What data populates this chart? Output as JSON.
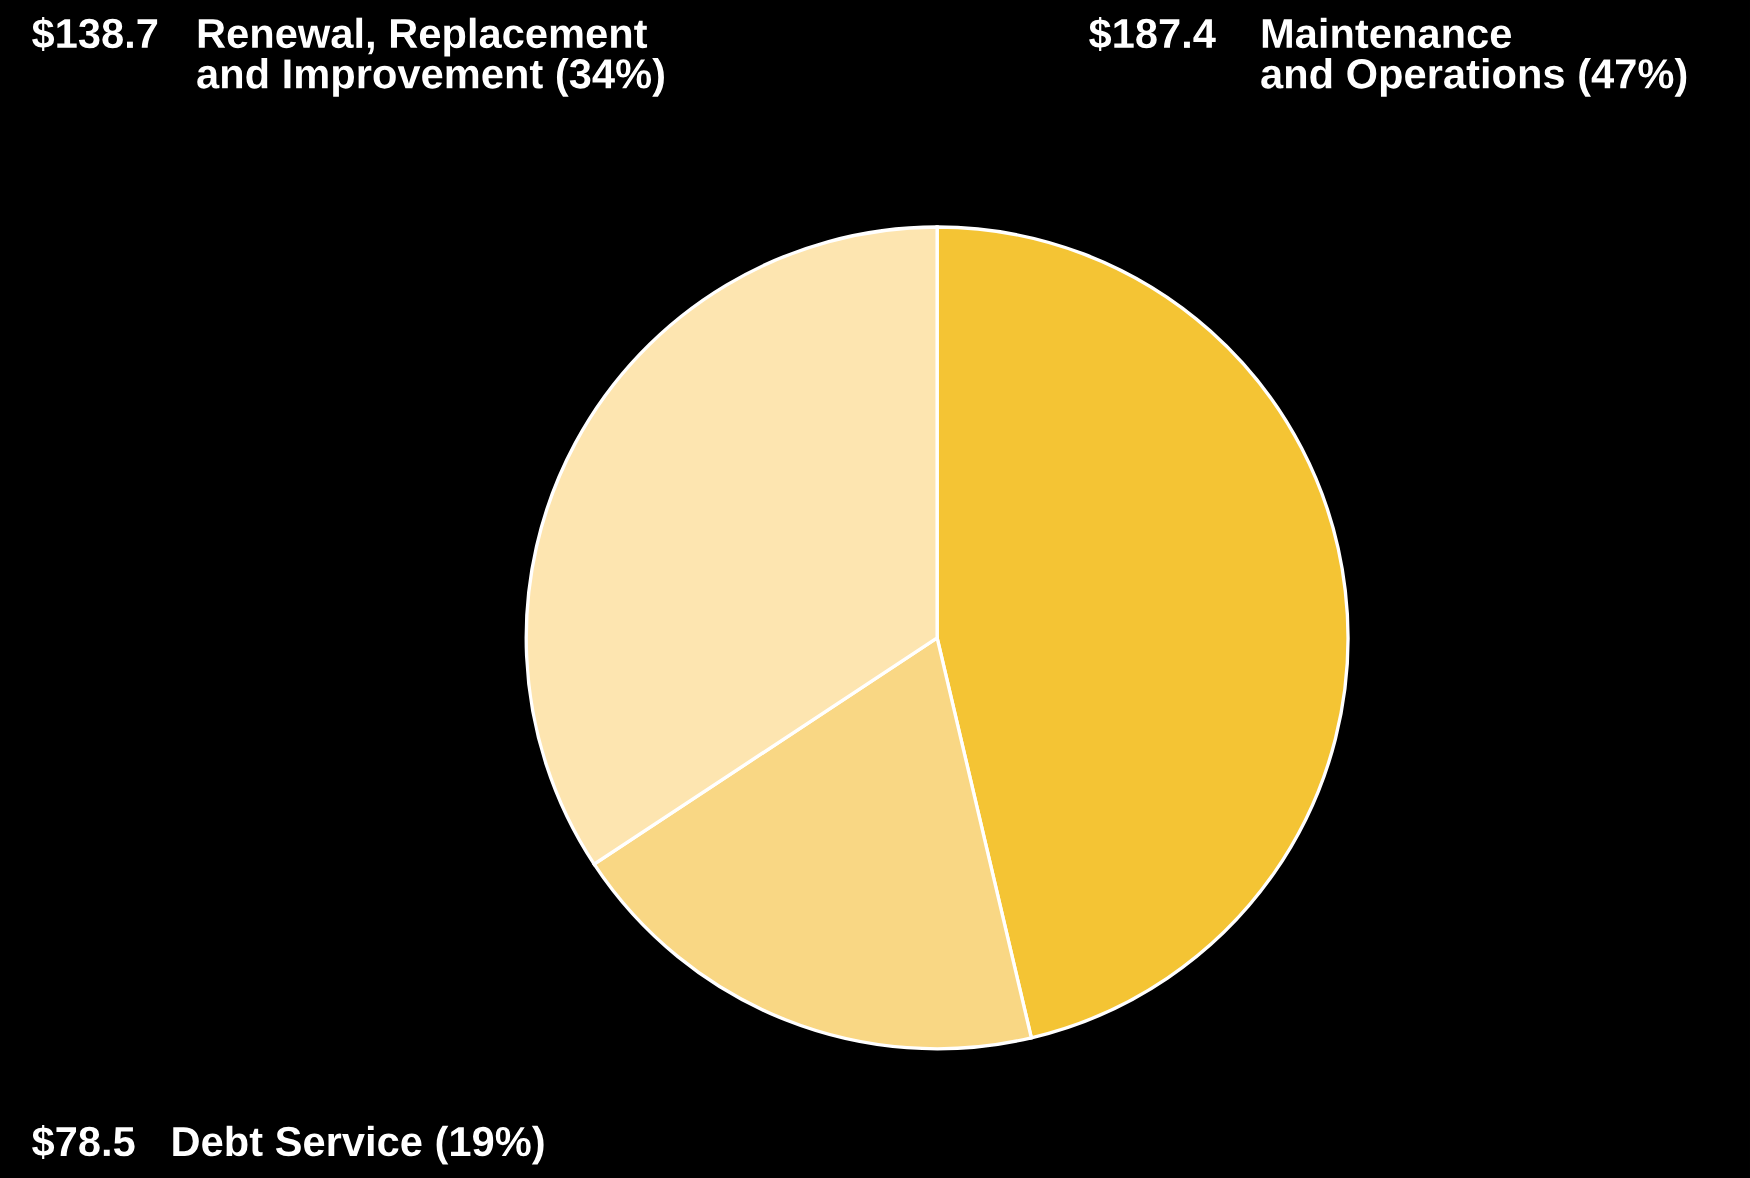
{
  "chart_data": {
    "type": "pie",
    "categories": [
      "Maintenance\nand Operations (47%)",
      "Debt Service (19%)",
      "Renewal, Replacement\nand Improvement (34%)"
    ],
    "values": [
      187.4,
      78.5,
      138.7
    ],
    "value_labels": [
      "$187.4",
      "$78.5",
      "$138.7"
    ],
    "colors": [
      "#f4c434",
      "#f9d784",
      "#fde5b0"
    ],
    "legend": false
  }
}
